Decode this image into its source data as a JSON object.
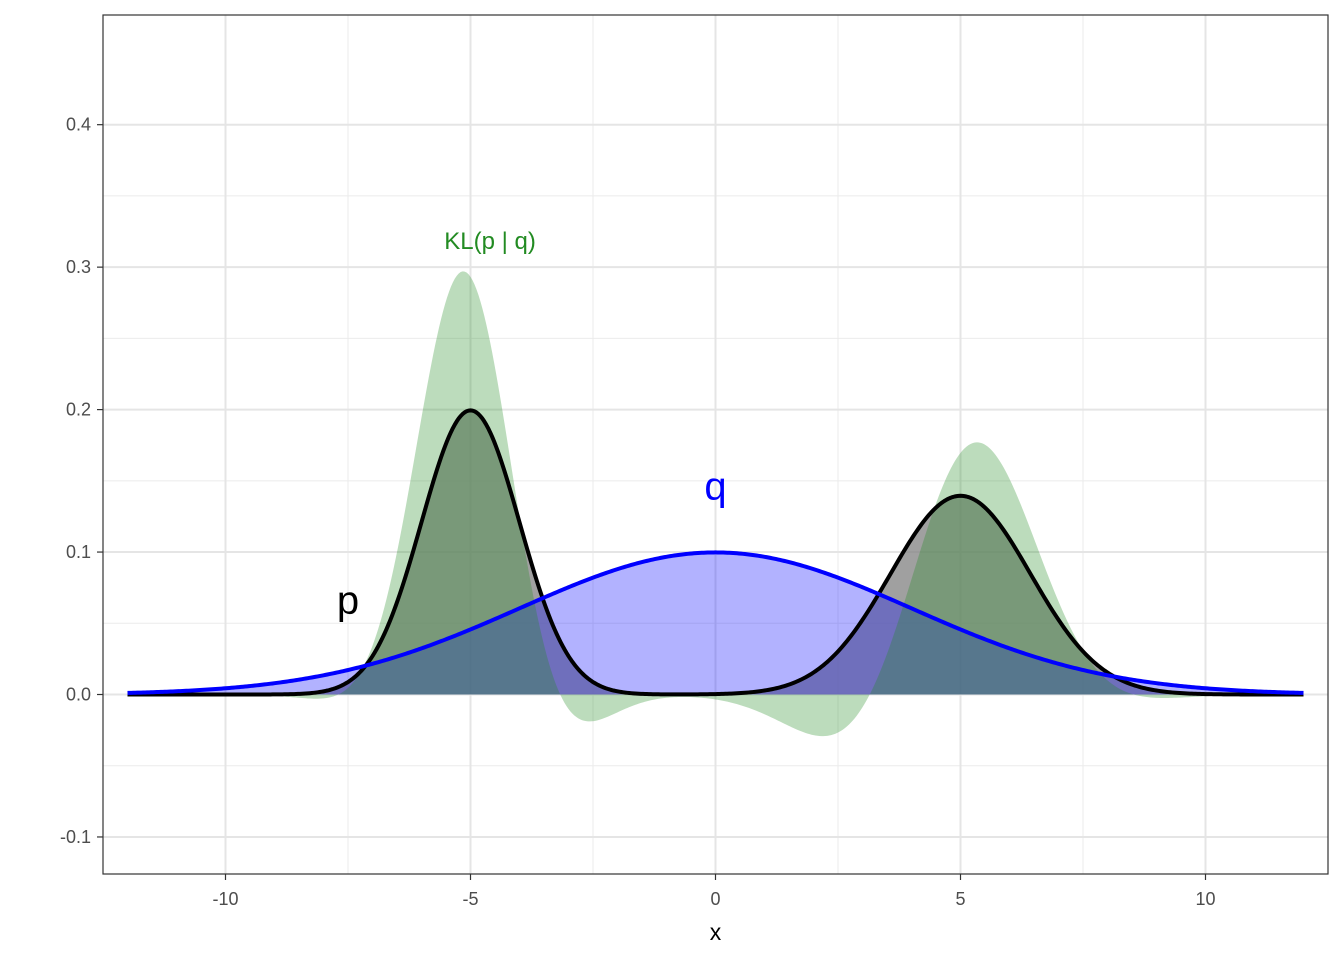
{
  "chart_data": {
    "type": "area",
    "title": "",
    "xlabel": "x",
    "ylabel": "",
    "xlim": [
      -12.5,
      12.5
    ],
    "ylim": [
      -0.126,
      0.477
    ],
    "x_ticks": [
      -10,
      -5,
      0,
      5,
      10
    ],
    "x_tick_labels": [
      "-10",
      "-5",
      "0",
      "5",
      "10"
    ],
    "y_ticks": [
      -0.1,
      0.0,
      0.1,
      0.2,
      0.3,
      0.4
    ],
    "y_tick_labels": [
      "-0.1",
      "0.0",
      "0.1",
      "0.2",
      "0.3",
      "0.4"
    ],
    "grid": true,
    "x_domain": [
      -12,
      12
    ],
    "series": [
      {
        "name": "p",
        "kind": "mixture-of-normals",
        "components": [
          {
            "weight": 0.5,
            "mean": -5,
            "sd": 1
          },
          {
            "weight": 0.5,
            "mean": 5,
            "sd": 1.43
          }
        ],
        "peak_values": [
          {
            "x": -5,
            "y": 0.2
          },
          {
            "x": 5,
            "y": 0.14
          }
        ],
        "line_color": "#000000",
        "fill_color": "#808080"
      },
      {
        "name": "q",
        "kind": "normal",
        "mean": 0,
        "sd": 4,
        "peak_values": [
          {
            "x": 0,
            "y": 0.1
          }
        ],
        "line_color": "#0000ff",
        "fill_color": "#0000ff"
      },
      {
        "name": "KL(p | q)",
        "kind": "pointwise p*log(p/q)",
        "peak_values": [
          {
            "x": -5.2,
            "y": 0.297
          },
          {
            "x": 5.3,
            "y": 0.16
          }
        ],
        "fill_color": "#228b22"
      }
    ],
    "annotations": [
      {
        "text": "KL(p | q)",
        "x": -4.6,
        "y": 0.318,
        "color": "#228b22"
      },
      {
        "text": "p",
        "x": -7.5,
        "y": 0.066,
        "color": "#000000"
      },
      {
        "text": "q",
        "x": 0,
        "y": 0.146,
        "color": "#0000ff"
      }
    ]
  }
}
